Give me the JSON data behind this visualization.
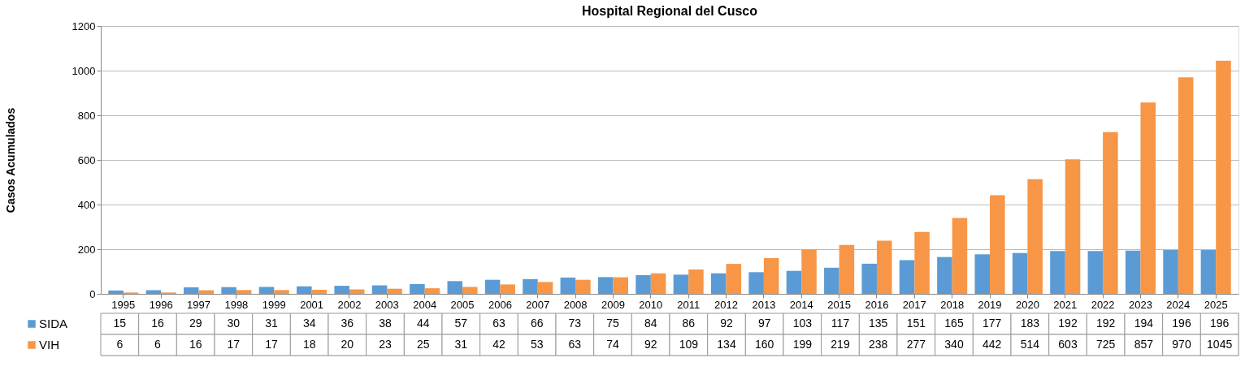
{
  "chart_data": {
    "type": "bar",
    "title": "Hospital Regional del Cusco",
    "ylabel": "Casos Acumulados",
    "categories": [
      "1995",
      "1996",
      "1997",
      "1998",
      "1999",
      "2001",
      "2002",
      "2003",
      "2004",
      "2005",
      "2006",
      "2007",
      "2008",
      "2009",
      "2010",
      "2011",
      "2012",
      "2013",
      "2014",
      "2015",
      "2016",
      "2017",
      "2018",
      "2019",
      "2020",
      "2021",
      "2022",
      "2023",
      "2024",
      "2025"
    ],
    "series": [
      {
        "name": "SIDA",
        "color": "#5b9bd5",
        "values": [
          15,
          16,
          29,
          30,
          31,
          34,
          36,
          38,
          44,
          57,
          63,
          66,
          73,
          75,
          84,
          86,
          92,
          97,
          103,
          117,
          135,
          151,
          165,
          177,
          183,
          192,
          192,
          194,
          196,
          196
        ]
      },
      {
        "name": "VIH",
        "color": "#f79646",
        "values": [
          6,
          6,
          16,
          17,
          17,
          18,
          20,
          23,
          25,
          31,
          42,
          53,
          63,
          74,
          92,
          109,
          134,
          160,
          199,
          219,
          238,
          277,
          340,
          442,
          514,
          603,
          725,
          857,
          970,
          1045
        ]
      }
    ],
    "ylim": [
      0,
      1200
    ],
    "yticks": [
      0,
      200,
      400,
      600,
      800,
      1000,
      1200
    ],
    "grid": "y",
    "legend": "bottom",
    "data_labels": true
  }
}
